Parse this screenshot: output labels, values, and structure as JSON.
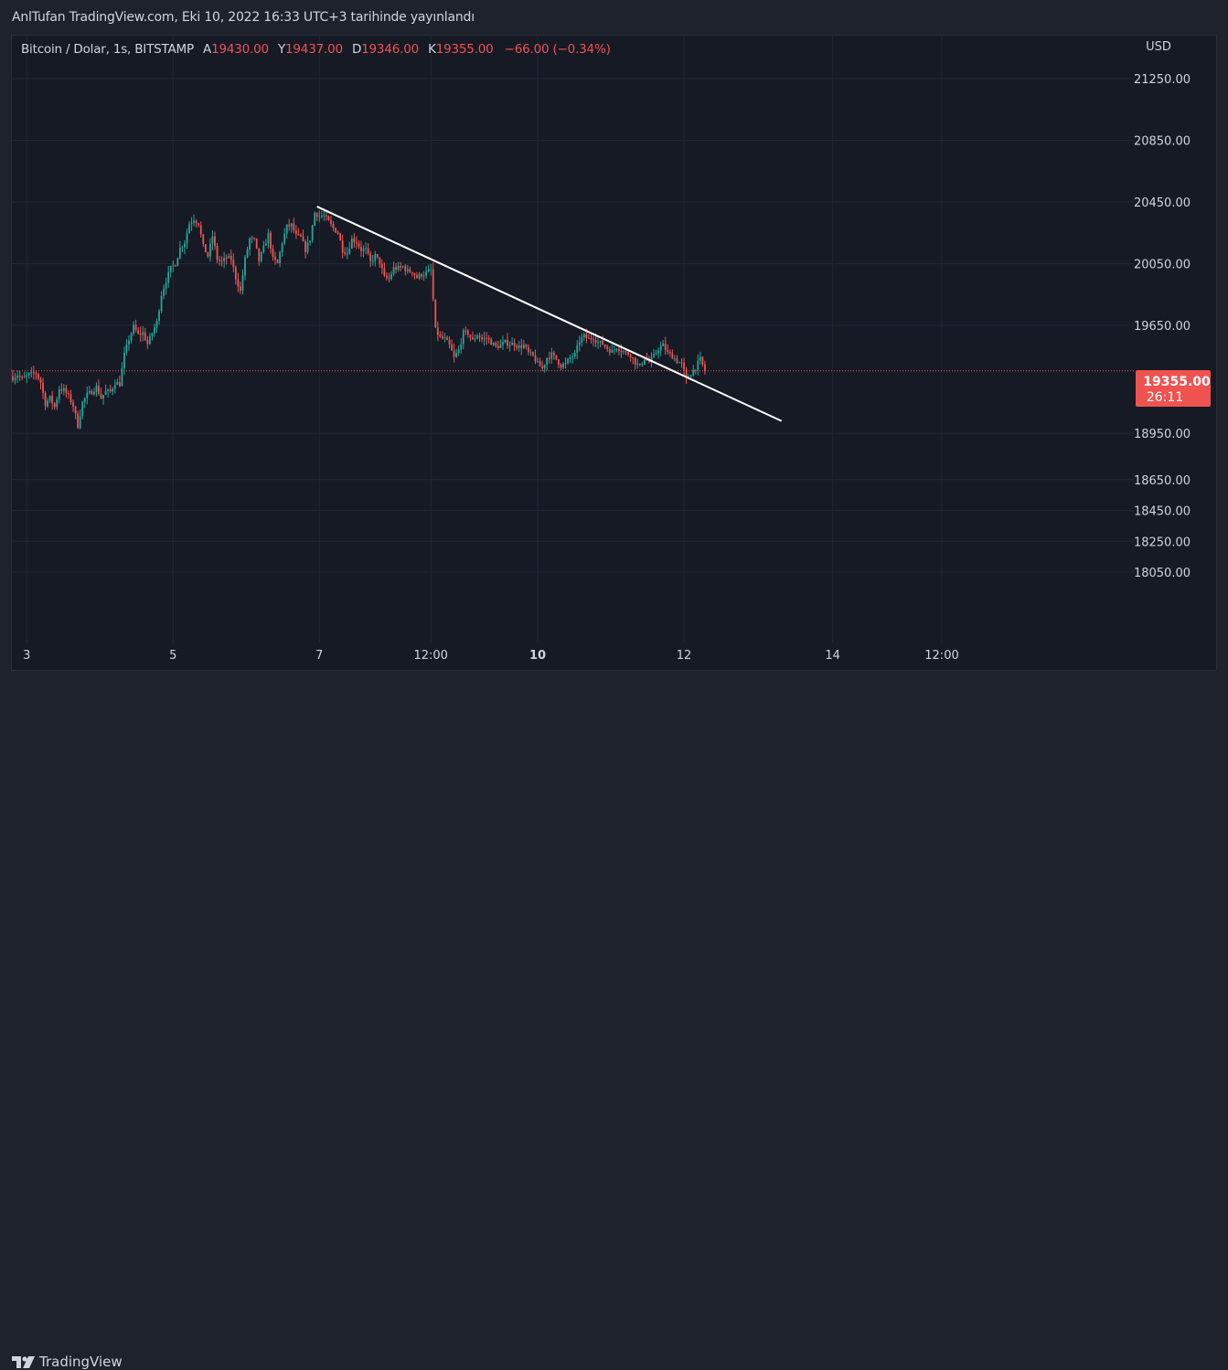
{
  "header": {
    "published": "AnlTufan TradingView.com, Eki 10, 2022 16:33 UTC+3 tarihinde yayınlandı"
  },
  "legend": {
    "symbol": "Bitcoin / Dolar, 1s, BITSTAMP",
    "open_label": "A",
    "open": "19430.00",
    "high_label": "Y",
    "high": "19437.00",
    "low_label": "D",
    "low": "19346.00",
    "close_label": "K",
    "close": "19355.00",
    "change": "−66.00 (−0.34%)"
  },
  "branding": {
    "logo_text": "TradingView"
  },
  "colors": {
    "up": "#26a69a",
    "down": "#ef5350",
    "grid": "#232733",
    "background": "#161a25",
    "text": "#d1d4dc",
    "trendline": "#ffffff"
  },
  "chart_data": {
    "type": "candlestick",
    "currency_label": "USD",
    "last_price": "19355.00",
    "countdown": "26:11",
    "y_ticks": [
      21250,
      20850,
      20450,
      20050,
      19650,
      18950,
      18650,
      18450,
      18250,
      18050
    ],
    "y_tick_labels": [
      "21250.00",
      "20850.00",
      "20450.00",
      "20050.00",
      "19650.00",
      "18950.00",
      "18650.00",
      "18450.00",
      "18250.00",
      "18050.00"
    ],
    "x_labels": [
      {
        "label": "3",
        "at": 6,
        "bold": false
      },
      {
        "label": "5",
        "at": 69,
        "bold": false
      },
      {
        "label": "7",
        "at": 132,
        "bold": false
      },
      {
        "label": "12:00",
        "at": 180,
        "bold": false
      },
      {
        "label": "10",
        "at": 226,
        "bold": true
      },
      {
        "label": "12",
        "at": 289,
        "bold": false
      },
      {
        "label": "14",
        "at": 353,
        "bold": false
      },
      {
        "label": "12:00",
        "at": 400,
        "bold": false
      }
    ],
    "trendline": {
      "from": [
        131,
        20420
      ],
      "to": [
        331,
        19030
      ]
    },
    "price_path": [
      [
        0,
        19310
      ],
      [
        2,
        19330
      ],
      [
        4,
        19300
      ],
      [
        7,
        19330
      ],
      [
        10,
        19340
      ],
      [
        12,
        19280
      ],
      [
        14,
        19140
      ],
      [
        16,
        19180
      ],
      [
        18,
        19120
      ],
      [
        20,
        19240
      ],
      [
        22,
        19230
      ],
      [
        24,
        19190
      ],
      [
        26,
        19130
      ],
      [
        28,
        19000
      ],
      [
        30,
        19150
      ],
      [
        32,
        19200
      ],
      [
        34,
        19220
      ],
      [
        36,
        19250
      ],
      [
        38,
        19180
      ],
      [
        40,
        19220
      ],
      [
        42,
        19220
      ],
      [
        44,
        19280
      ],
      [
        46,
        19270
      ],
      [
        48,
        19460
      ],
      [
        50,
        19560
      ],
      [
        52,
        19640
      ],
      [
        54,
        19590
      ],
      [
        56,
        19600
      ],
      [
        58,
        19530
      ],
      [
        60,
        19600
      ],
      [
        62,
        19670
      ],
      [
        64,
        19850
      ],
      [
        66,
        19940
      ],
      [
        68,
        20020
      ],
      [
        70,
        20050
      ],
      [
        72,
        20150
      ],
      [
        74,
        20190
      ],
      [
        76,
        20310
      ],
      [
        78,
        20340
      ],
      [
        80,
        20310
      ],
      [
        82,
        20160
      ],
      [
        84,
        20100
      ],
      [
        86,
        20230
      ],
      [
        88,
        20080
      ],
      [
        90,
        20060
      ],
      [
        92,
        20090
      ],
      [
        94,
        20080
      ],
      [
        96,
        19960
      ],
      [
        98,
        19870
      ],
      [
        100,
        20080
      ],
      [
        102,
        20210
      ],
      [
        104,
        20200
      ],
      [
        106,
        20070
      ],
      [
        108,
        20150
      ],
      [
        110,
        20240
      ],
      [
        112,
        20080
      ],
      [
        114,
        20050
      ],
      [
        116,
        20190
      ],
      [
        118,
        20290
      ],
      [
        120,
        20300
      ],
      [
        122,
        20230
      ],
      [
        124,
        20220
      ],
      [
        126,
        20140
      ],
      [
        128,
        20210
      ],
      [
        130,
        20380
      ],
      [
        132,
        20360
      ],
      [
        134,
        20360
      ],
      [
        136,
        20320
      ],
      [
        138,
        20280
      ],
      [
        140,
        20250
      ],
      [
        142,
        20140
      ],
      [
        144,
        20120
      ],
      [
        146,
        20210
      ],
      [
        148,
        20190
      ],
      [
        150,
        20140
      ],
      [
        152,
        20140
      ],
      [
        154,
        20060
      ],
      [
        156,
        20100
      ],
      [
        158,
        20060
      ],
      [
        160,
        19960
      ],
      [
        162,
        19950
      ],
      [
        164,
        20020
      ],
      [
        166,
        20020
      ],
      [
        168,
        20030
      ],
      [
        170,
        20000
      ],
      [
        172,
        20000
      ],
      [
        174,
        19960
      ],
      [
        176,
        19980
      ],
      [
        178,
        19990
      ],
      [
        180,
        20010
      ],
      [
        182,
        19620
      ],
      [
        184,
        19570
      ],
      [
        186,
        19560
      ],
      [
        188,
        19520
      ],
      [
        190,
        19440
      ],
      [
        192,
        19490
      ],
      [
        194,
        19600
      ],
      [
        196,
        19600
      ],
      [
        198,
        19550
      ],
      [
        200,
        19590
      ],
      [
        202,
        19560
      ],
      [
        204,
        19570
      ],
      [
        206,
        19540
      ],
      [
        208,
        19510
      ],
      [
        210,
        19520
      ],
      [
        212,
        19540
      ],
      [
        214,
        19530
      ],
      [
        216,
        19530
      ],
      [
        218,
        19510
      ],
      [
        220,
        19520
      ],
      [
        222,
        19470
      ],
      [
        224,
        19450
      ],
      [
        226,
        19400
      ],
      [
        228,
        19370
      ],
      [
        230,
        19440
      ],
      [
        232,
        19460
      ],
      [
        234,
        19430
      ],
      [
        236,
        19390
      ],
      [
        238,
        19400
      ],
      [
        240,
        19440
      ],
      [
        242,
        19460
      ],
      [
        244,
        19550
      ],
      [
        246,
        19580
      ],
      [
        248,
        19560
      ],
      [
        250,
        19570
      ],
      [
        252,
        19540
      ],
      [
        254,
        19530
      ],
      [
        256,
        19500
      ],
      [
        258,
        19480
      ],
      [
        260,
        19510
      ],
      [
        262,
        19490
      ],
      [
        264,
        19470
      ],
      [
        266,
        19460
      ],
      [
        268,
        19410
      ],
      [
        270,
        19380
      ],
      [
        272,
        19440
      ],
      [
        274,
        19410
      ],
      [
        276,
        19450
      ],
      [
        278,
        19500
      ],
      [
        280,
        19520
      ],
      [
        282,
        19470
      ],
      [
        284,
        19450
      ],
      [
        286,
        19420
      ],
      [
        288,
        19400
      ],
      [
        290,
        19300
      ],
      [
        292,
        19340
      ],
      [
        294,
        19380
      ],
      [
        296,
        19430
      ],
      [
        298,
        19355
      ]
    ]
  }
}
